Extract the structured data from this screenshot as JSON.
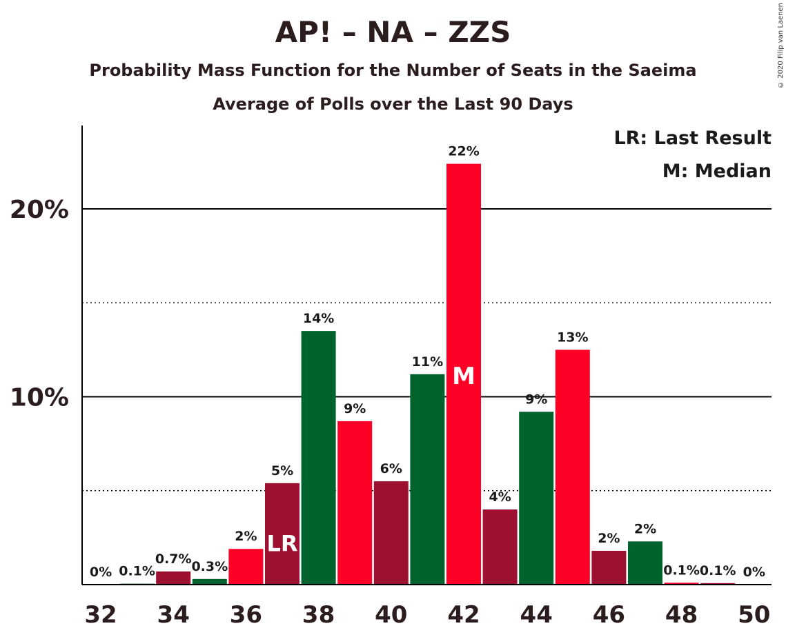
{
  "chart_data": {
    "type": "bar",
    "title": "AP! – NA – ZZS",
    "subtitle_1": "Probability Mass Function for the Number of Seats in the Saeima",
    "subtitle_2": "Average of Polls over the Last 90 Days",
    "copyright": "© 2020 Filip van Laenen",
    "x": [
      32,
      33,
      34,
      35,
      36,
      37,
      38,
      39,
      40,
      41,
      42,
      43,
      44,
      45,
      46,
      47,
      48,
      49,
      50
    ],
    "values": [
      0,
      0.1,
      0.7,
      0.3,
      2,
      5,
      14,
      9,
      6,
      11,
      22,
      4,
      9,
      13,
      2,
      2,
      0.1,
      0.1,
      0
    ],
    "heights": [
      0,
      0.05,
      0.7,
      0.3,
      1.9,
      5.4,
      13.5,
      8.7,
      5.5,
      11.2,
      22.4,
      4.0,
      9.2,
      12.5,
      1.8,
      2.3,
      0.1,
      0.08,
      0
    ],
    "data_labels": [
      "0%",
      "0.1%",
      "0.7%",
      "0.3%",
      "2%",
      "5%",
      "14%",
      "9%",
      "6%",
      "11%",
      "22%",
      "4%",
      "9%",
      "13%",
      "2%",
      "2%",
      "0.1%",
      "0.1%",
      "0%"
    ],
    "x_tick_labels": [
      "32",
      "34",
      "36",
      "38",
      "40",
      "42",
      "44",
      "46",
      "48",
      "50"
    ],
    "y_tick_labels": [
      "10%",
      "20%"
    ],
    "ylim": [
      0,
      24.5
    ],
    "gridlines_solid": [
      10,
      20
    ],
    "gridlines_dotted": [
      5,
      15
    ],
    "last_result_seat": 37,
    "last_result_marker": "LR",
    "median_seat": 42,
    "median_marker": "M",
    "legend": [
      "LR: Last Result",
      "M: Median"
    ],
    "legend_position": "top-right",
    "colors": {
      "red": "#ff0026",
      "dark_red": "#9e1030",
      "green": "#00632d",
      "axis": "#000000"
    },
    "bar_colors": [
      "dark_red",
      "green",
      "dark_red",
      "green",
      "red",
      "dark_red",
      "green",
      "red",
      "dark_red",
      "green",
      "red",
      "dark_red",
      "green",
      "red",
      "dark_red",
      "green",
      "red",
      "dark_red",
      "green"
    ]
  }
}
